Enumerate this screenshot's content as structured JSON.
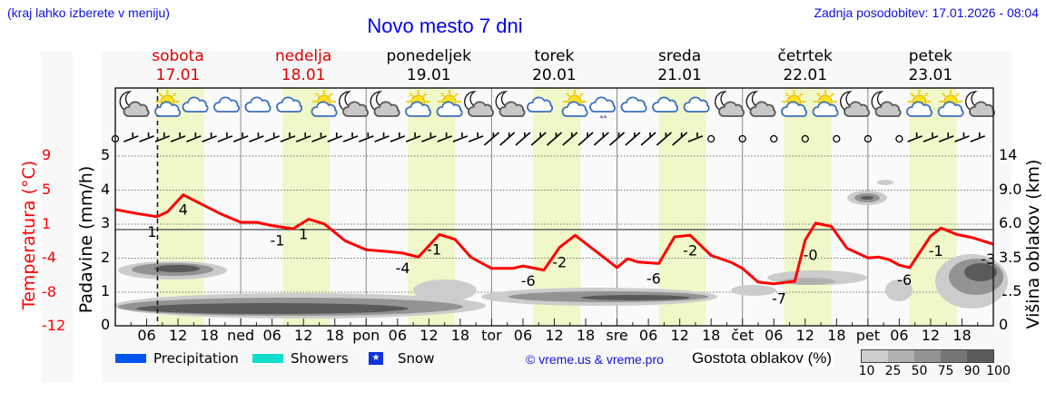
{
  "header": {
    "left_note": "(kraj lahko izberete v meniju)",
    "title": "Novo mesto 7 dni",
    "updated": "Zadnja posodobitev: 17.01.2026 - 08:04"
  },
  "days": [
    {
      "name": "sobota",
      "date": "17.01",
      "weekend": true
    },
    {
      "name": "nedelja",
      "date": "18.01",
      "weekend": true
    },
    {
      "name": "ponedeljek",
      "date": "19.01",
      "weekend": false
    },
    {
      "name": "torek",
      "date": "20.01",
      "weekend": false
    },
    {
      "name": "sreda",
      "date": "21.01",
      "weekend": false
    },
    {
      "name": "četrtek",
      "date": "22.01",
      "weekend": false
    },
    {
      "name": "petek",
      "date": "23.01",
      "weekend": false
    }
  ],
  "axes": {
    "temp_label": "Temperatura (°C)",
    "prec_label": "Padavine (mm/h)",
    "cloud_label": "Višina oblakov (km)",
    "temp_ticks": [
      "9",
      "5",
      "1",
      "-4",
      "-8",
      "-12"
    ],
    "prec_ticks": [
      "5",
      "4",
      "3",
      "2",
      "1",
      "0"
    ],
    "cloud_ticks": [
      "14",
      "9.0",
      "6.0",
      "3.5",
      "1.5",
      "0"
    ]
  },
  "x_labels": [
    "06",
    "12",
    "18",
    "ned",
    "06",
    "12",
    "18",
    "pon",
    "06",
    "12",
    "18",
    "tor",
    "06",
    "12",
    "18",
    "sre",
    "06",
    "12",
    "18",
    "čet",
    "06",
    "12",
    "18",
    "pet",
    "06",
    "12",
    "18"
  ],
  "legend": {
    "precipitation": "Precipitation",
    "showers": "Showers",
    "snow": "Snow",
    "precipitation_color": "#0055ee",
    "showers_color": "#11ddcc",
    "snow_color": "#1133dd",
    "copyright": "© vreme.us & vreme.pro",
    "cloud_density_label": "Gostota oblakov (%)",
    "density_scale": [
      "10",
      "25",
      "50",
      "75",
      "90",
      "100"
    ],
    "density_colors": [
      "#cccccc",
      "#b0b0b0",
      "#939393",
      "#767676",
      "#5a5a5a"
    ]
  },
  "icons": [
    "moon-cloud",
    "sun-cloud",
    "cloud",
    "cloud",
    "cloud",
    "cloud",
    "sun-cloud",
    "moon-cloud",
    "moon-cloud",
    "sun-cloud",
    "sun-cloud",
    "moon-cloud",
    "moon-cloud",
    "cloud",
    "sun-cloud",
    "cloud-snow",
    "cloud",
    "cloud",
    "cloud",
    "moon-cloud",
    "moon-cloud",
    "sun-cloud",
    "sun-cloud",
    "moon-cloud",
    "moon-cloud",
    "sun-cloud",
    "sun-cloud",
    "moon-cloud"
  ],
  "chart_data": {
    "type": "line",
    "title": "Novo mesto 7 dni",
    "xlabel": "",
    "ylabel": "Temperatura (°C)",
    "ylim": [
      -12,
      9
    ],
    "x_range_hours": [
      0,
      168
    ],
    "now_hour": 8.07,
    "series": [
      {
        "name": "Temperatura (°C)",
        "color": "#ff0000",
        "hours": [
          0,
          4,
          8,
          10,
          13,
          16,
          20,
          24,
          27,
          30,
          34,
          37,
          40,
          44,
          48,
          52,
          55,
          58,
          62,
          65,
          68,
          72,
          76,
          78,
          82,
          85,
          88,
          92,
          96,
          98,
          100,
          104,
          107,
          110,
          114,
          118,
          120,
          123,
          126,
          130,
          132,
          134,
          137,
          140,
          144,
          146,
          148,
          150,
          152,
          156,
          158,
          161,
          164,
          168
        ],
        "values": [
          2.4,
          1.9,
          1.5,
          2.1,
          4.2,
          3.2,
          1.9,
          0.8,
          0.8,
          0.4,
          0.0,
          1.2,
          0.6,
          -1.5,
          -2.6,
          -2.8,
          -3.0,
          -3.5,
          -0.7,
          -1.3,
          -3.5,
          -4.9,
          -4.9,
          -4.6,
          -5.1,
          -2.3,
          -0.8,
          -2.8,
          -4.8,
          -3.7,
          -4.1,
          -4.3,
          -1.0,
          -0.8,
          -3.3,
          -4.2,
          -4.9,
          -6.6,
          -6.8,
          -6.5,
          -1.4,
          0.7,
          0.3,
          -2.4,
          -3.6,
          -3.5,
          -3.8,
          -4.5,
          -4.8,
          -0.9,
          0.1,
          -0.7,
          -1.1,
          -1.9
        ]
      }
    ],
    "annotations": [
      {
        "hour": 7,
        "value": "1"
      },
      {
        "hour": 13,
        "value": "4"
      },
      {
        "hour": 31,
        "value": "-1"
      },
      {
        "hour": 36,
        "value": "1"
      },
      {
        "hour": 55,
        "value": "-4"
      },
      {
        "hour": 61,
        "value": "-1"
      },
      {
        "hour": 79,
        "value": "-6"
      },
      {
        "hour": 85,
        "value": "-2"
      },
      {
        "hour": 103,
        "value": "-6"
      },
      {
        "hour": 110,
        "value": "-2"
      },
      {
        "hour": 127,
        "value": "-7"
      },
      {
        "hour": 133,
        "value": "-0"
      },
      {
        "hour": 151,
        "value": "-6"
      },
      {
        "hour": 157,
        "value": "-1"
      },
      {
        "hour": 167,
        "value": "-3"
      }
    ],
    "secondary_axes": {
      "precipitation_mm_h": {
        "ticks": [
          0,
          1,
          2,
          3,
          4,
          5
        ]
      },
      "cloud_height_km": {
        "ticks": [
          0,
          1.5,
          3.5,
          6.0,
          9.0,
          14
        ]
      }
    },
    "daylight_bands_hours": [
      [
        8,
        17
      ],
      [
        32,
        41
      ],
      [
        56,
        65
      ],
      [
        80,
        89
      ],
      [
        104,
        113
      ],
      [
        128,
        137
      ],
      [
        152,
        161
      ]
    ],
    "wind_calm_hours": [
      118,
      150
    ],
    "grid": true,
    "legend_position": "bottom"
  }
}
